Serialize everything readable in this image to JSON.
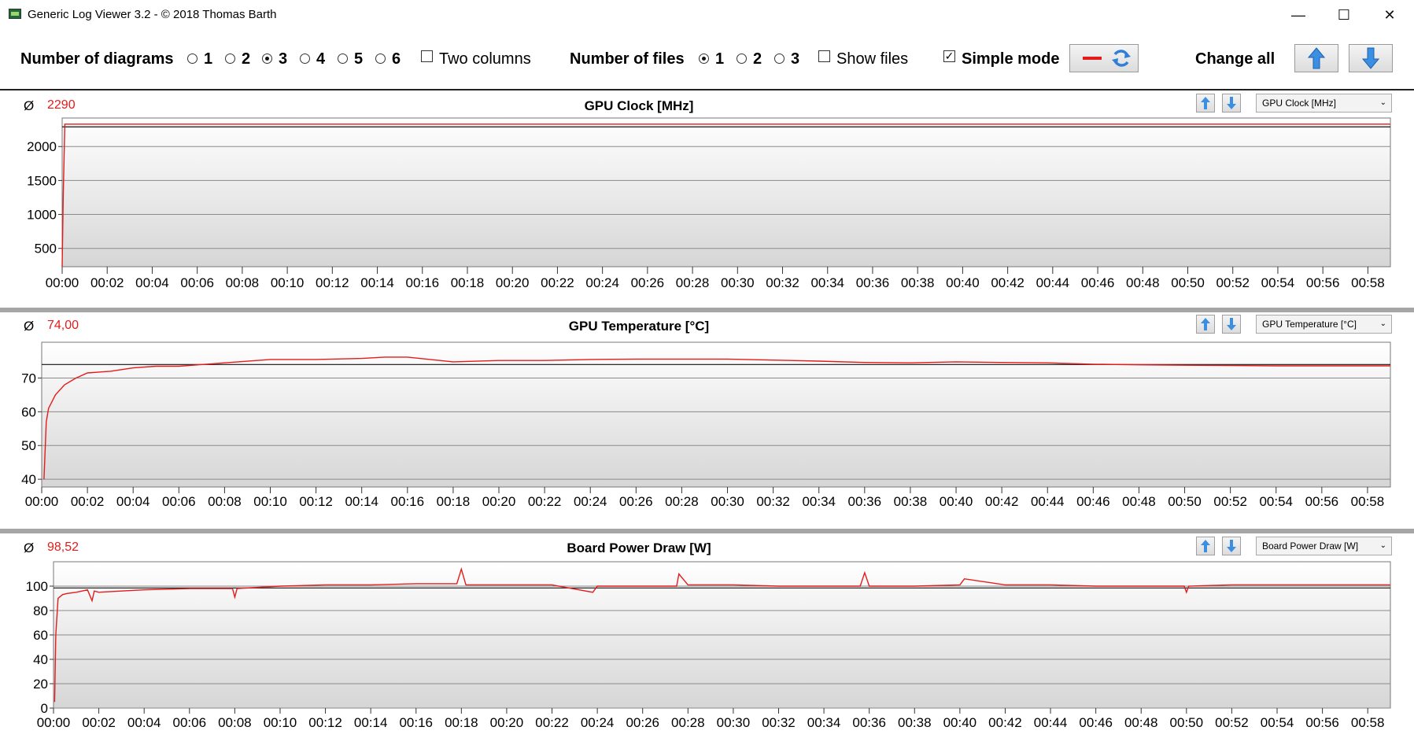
{
  "window": {
    "title": "Generic Log Viewer 3.2 - © 2018 Thomas Barth",
    "minimize_glyph": "—",
    "maximize_glyph": "☐",
    "close_glyph": "✕"
  },
  "toolbar": {
    "num_diagrams_label": "Number of diagrams",
    "diagram_options": [
      "1",
      "2",
      "3",
      "4",
      "5",
      "6"
    ],
    "selected_diagrams": "3",
    "two_columns_label": "Two columns",
    "two_columns_checked": false,
    "num_files_label": "Number of files",
    "file_options": [
      "1",
      "2",
      "3"
    ],
    "selected_files": "1",
    "show_files_label": "Show files",
    "show_files_checked": false,
    "simple_mode_label": "Simple mode",
    "simple_mode_checked": true,
    "change_all_label": "Change all",
    "accent_red": "#e41b1b",
    "accent_blue": "#2f7fd8"
  },
  "panels": [
    {
      "avg_symbol": "Ø",
      "avg_value": "2290",
      "title": "GPU Clock [MHz]",
      "select_value": "GPU Clock [MHz]"
    },
    {
      "avg_symbol": "Ø",
      "avg_value": "74,00",
      "title": "GPU Temperature [°C]",
      "select_value": "GPU Temperature [°C]"
    },
    {
      "avg_symbol": "Ø",
      "avg_value": "98,52",
      "title": "Board Power Draw [W]",
      "select_value": "Board Power Draw [W]"
    }
  ],
  "chart_data": [
    {
      "type": "line",
      "title": "GPU Clock [MHz]",
      "x_tick_labels": [
        "00:00",
        "00:02",
        "00:04",
        "00:06",
        "00:08",
        "00:10",
        "00:12",
        "00:14",
        "00:16",
        "00:18",
        "00:20",
        "00:22",
        "00:24",
        "00:26",
        "00:28",
        "00:30",
        "00:32",
        "00:34",
        "00:36",
        "00:38",
        "00:40",
        "00:42",
        "00:44",
        "00:46",
        "00:48",
        "00:50",
        "00:52",
        "00:54",
        "00:56",
        "00:58"
      ],
      "xlim_minutes": [
        0,
        59
      ],
      "y_ticks": [
        500,
        1000,
        1500,
        2000
      ],
      "ylim": [
        230,
        2420
      ],
      "average": 2290,
      "series_color": "#e41b1b",
      "series": [
        {
          "x_minutes": [
            0,
            0.05,
            0.12,
            0.2,
            59
          ],
          "values": [
            230,
            1300,
            2330,
            2330,
            2330
          ]
        }
      ],
      "grid": true
    },
    {
      "type": "line",
      "title": "GPU Temperature [°C]",
      "x_tick_labels": [
        "00:00",
        "00:02",
        "00:04",
        "00:06",
        "00:08",
        "00:10",
        "00:12",
        "00:14",
        "00:16",
        "00:18",
        "00:20",
        "00:22",
        "00:24",
        "00:26",
        "00:28",
        "00:30",
        "00:32",
        "00:34",
        "00:36",
        "00:38",
        "00:40",
        "00:42",
        "00:44",
        "00:46",
        "00:48",
        "00:50",
        "00:52",
        "00:54",
        "00:56",
        "00:58"
      ],
      "xlim_minutes": [
        0,
        59
      ],
      "y_ticks": [
        40,
        50,
        60,
        70
      ],
      "ylim": [
        37.7,
        80.6
      ],
      "average": 74.0,
      "series_color": "#e41b1b",
      "series": [
        {
          "x_minutes": [
            0.1,
            0.2,
            0.3,
            0.6,
            1,
            1.5,
            2,
            3,
            4,
            5,
            6,
            8,
            10,
            12,
            14,
            15,
            16,
            17,
            18,
            20,
            22,
            24,
            26,
            28,
            30,
            32,
            34,
            36,
            38,
            40,
            42,
            44,
            46,
            48,
            50,
            52,
            54,
            56,
            58,
            59
          ],
          "values": [
            40,
            57,
            61,
            65,
            68,
            70,
            71.5,
            72,
            73,
            73.5,
            73.5,
            74.5,
            75.5,
            75.5,
            75.8,
            76.2,
            76.2,
            75.5,
            74.8,
            75.2,
            75.2,
            75.5,
            75.6,
            75.6,
            75.6,
            75.3,
            75,
            74.6,
            74.5,
            74.8,
            74.6,
            74.5,
            74.1,
            73.9,
            73.8,
            73.7,
            73.6,
            73.6,
            73.6,
            73.6
          ]
        }
      ],
      "grid": true
    },
    {
      "type": "line",
      "title": "Board Power Draw [W]",
      "x_tick_labels": [
        "00:00",
        "00:02",
        "00:04",
        "00:06",
        "00:08",
        "00:10",
        "00:12",
        "00:14",
        "00:16",
        "00:18",
        "00:20",
        "00:22",
        "00:24",
        "00:26",
        "00:28",
        "00:30",
        "00:32",
        "00:34",
        "00:36",
        "00:38",
        "00:40",
        "00:42",
        "00:44",
        "00:46",
        "00:48",
        "00:50",
        "00:52",
        "00:54",
        "00:56",
        "00:58"
      ],
      "xlim_minutes": [
        0,
        59
      ],
      "y_ticks": [
        0,
        20,
        40,
        60,
        80,
        100
      ],
      "ylim": [
        0,
        120
      ],
      "average": 98.52,
      "series_color": "#e41b1b",
      "series": [
        {
          "x_minutes": [
            0.05,
            0.1,
            0.2,
            0.4,
            0.6,
            1,
            1.5,
            1.7,
            1.8,
            2,
            3,
            4,
            6,
            7.9,
            8,
            8.1,
            10,
            12,
            14,
            16,
            17.8,
            18,
            18.2,
            18.5,
            20,
            22,
            23.8,
            24,
            26,
            27.5,
            27.6,
            28,
            30,
            32,
            34,
            35.6,
            35.8,
            36,
            38,
            40,
            40.2,
            42,
            44,
            46,
            48,
            49.9,
            50,
            50.1,
            52,
            54,
            56,
            58,
            59
          ],
          "values": [
            5,
            60,
            90,
            93,
            94,
            95,
            97,
            88,
            96,
            95,
            96,
            97,
            98,
            98,
            91,
            98,
            100,
            101,
            101,
            102,
            102,
            114,
            101,
            101,
            101,
            101,
            95,
            100,
            100,
            100,
            110,
            101,
            101,
            100,
            100,
            100,
            111,
            100,
            100,
            101,
            106,
            101,
            101,
            100,
            100,
            100,
            95,
            100,
            101,
            101,
            101,
            101,
            101
          ]
        }
      ],
      "grid": true
    }
  ]
}
